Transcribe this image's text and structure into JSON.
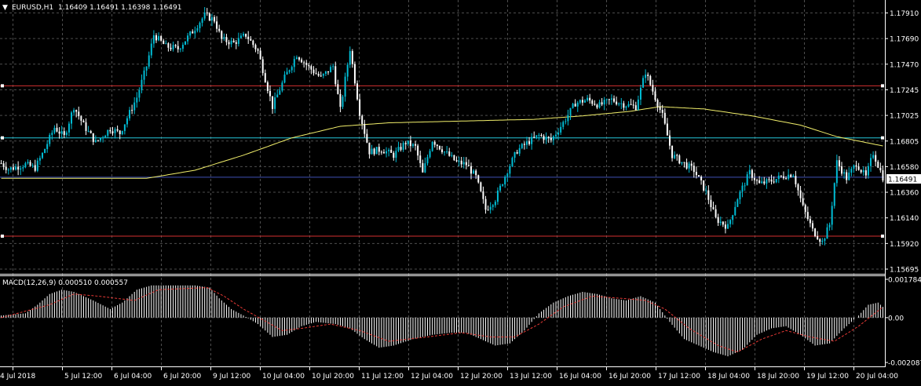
{
  "header": {
    "symbol_label": "EURUSD,H1",
    "ohlc": "1.16409 1.16491 1.16398 1.16491"
  },
  "indicator": {
    "label": "MACD(12,26,9) 0.000510 0.000557"
  },
  "colors": {
    "background": "#000000",
    "grid": "#4d4d4d",
    "text": "#ffffff",
    "candle": "#00bcd4",
    "ma_line": "#f2ef6b",
    "support_resistance": "#d32f2f",
    "cyan_hline": "#26c6da",
    "current_price_line": "#3f51b5",
    "macd_histogram": "#ffffff",
    "macd_signal": "#e53935"
  },
  "chart_data": [
    {
      "type": "candlestick",
      "title": "EURUSD,H1",
      "y_ticks": [
        "1.17910",
        "1.17690",
        "1.17470",
        "1.17245",
        "1.17025",
        "1.16805",
        "1.16580",
        "1.16360",
        "1.16140",
        "1.15920",
        "1.15695"
      ],
      "ylim": [
        1.15695,
        1.1801
      ],
      "x_ticks": [
        "4 Jul 2018",
        "5 Jul 12:00",
        "6 Jul 04:00",
        "6 Jul 20:00",
        "9 Jul 12:00",
        "10 Jul 04:00",
        "10 Jul 20:00",
        "11 Jul 12:00",
        "12 Jul 04:00",
        "12 Jul 20:00",
        "13 Jul 12:00",
        "16 Jul 04:00",
        "16 Jul 20:00",
        "17 Jul 12:00",
        "18 Jul 04:00",
        "18 Jul 20:00",
        "19 Jul 12:00",
        "20 Jul 04:00"
      ],
      "current_price": "1.16491",
      "horizontal_lines": [
        {
          "value": 1.1728,
          "color": "red"
        },
        {
          "value": 1.1683,
          "color": "cyan"
        },
        {
          "value": 1.1649,
          "color": "blue"
        },
        {
          "value": 1.1598,
          "color": "red"
        }
      ],
      "close_path": [
        [
          0,
          1.1661
        ],
        [
          3,
          1.1656
        ],
        [
          10,
          1.166
        ],
        [
          14,
          1.1657
        ],
        [
          17,
          1.1669
        ],
        [
          22,
          1.1692
        ],
        [
          26,
          1.1684
        ],
        [
          30,
          1.171
        ],
        [
          34,
          1.1694
        ],
        [
          39,
          1.1679
        ],
        [
          45,
          1.1691
        ],
        [
          49,
          1.1687
        ],
        [
          56,
          1.1718
        ],
        [
          60,
          1.1745
        ],
        [
          63,
          1.1772
        ],
        [
          68,
          1.1762
        ],
        [
          73,
          1.176
        ],
        [
          79,
          1.1775
        ],
        [
          84,
          1.1789
        ],
        [
          88,
          1.1785
        ],
        [
          91,
          1.1768
        ],
        [
          96,
          1.1765
        ],
        [
          101,
          1.1772
        ],
        [
          106,
          1.1758
        ],
        [
          112,
          1.171
        ],
        [
          117,
          1.1735
        ],
        [
          122,
          1.1755
        ],
        [
          127,
          1.1744
        ],
        [
          132,
          1.1735
        ],
        [
          137,
          1.1745
        ],
        [
          140,
          1.1707
        ],
        [
          144,
          1.176
        ],
        [
          148,
          1.1705
        ],
        [
          152,
          1.1671
        ],
        [
          157,
          1.1673
        ],
        [
          162,
          1.1668
        ],
        [
          167,
          1.1679
        ],
        [
          171,
          1.1675
        ],
        [
          174,
          1.1652
        ],
        [
          178,
          1.1681
        ],
        [
          183,
          1.1671
        ],
        [
          188,
          1.1662
        ],
        [
          192,
          1.166
        ],
        [
          196,
          1.1649
        ],
        [
          200,
          1.1621
        ],
        [
          204,
          1.163
        ],
        [
          209,
          1.1655
        ],
        [
          213,
          1.1672
        ],
        [
          218,
          1.168
        ],
        [
          222,
          1.1685
        ],
        [
          227,
          1.1681
        ],
        [
          232,
          1.1696
        ],
        [
          237,
          1.1713
        ],
        [
          242,
          1.1716
        ],
        [
          247,
          1.1711
        ],
        [
          252,
          1.1716
        ],
        [
          257,
          1.1712
        ],
        [
          262,
          1.171
        ],
        [
          266,
          1.174
        ],
        [
          270,
          1.1718
        ],
        [
          273,
          1.1702
        ],
        [
          277,
          1.1668
        ],
        [
          281,
          1.1662
        ],
        [
          286,
          1.1655
        ],
        [
          291,
          1.1636
        ],
        [
          295,
          1.1613
        ],
        [
          300,
          1.1606
        ],
        [
          304,
          1.1631
        ],
        [
          309,
          1.1653
        ],
        [
          313,
          1.1643
        ],
        [
          318,
          1.1646
        ],
        [
          323,
          1.165
        ],
        [
          327,
          1.1652
        ],
        [
          331,
          1.1623
        ],
        [
          335,
          1.1603
        ],
        [
          339,
          1.1593
        ],
        [
          342,
          1.1608
        ],
        [
          345,
          1.1662
        ],
        [
          349,
          1.1648
        ],
        [
          353,
          1.1661
        ],
        [
          357,
          1.1649
        ],
        [
          360,
          1.167
        ],
        [
          364,
          1.1649
        ]
      ],
      "ma_path": [
        [
          0,
          1.1648
        ],
        [
          40,
          1.1648
        ],
        [
          60,
          1.1648
        ],
        [
          80,
          1.1655
        ],
        [
          100,
          1.1668
        ],
        [
          120,
          1.1683
        ],
        [
          140,
          1.1693
        ],
        [
          160,
          1.1696
        ],
        [
          180,
          1.1697
        ],
        [
          200,
          1.1698
        ],
        [
          220,
          1.1699
        ],
        [
          240,
          1.1702
        ],
        [
          260,
          1.1706
        ],
        [
          272,
          1.171
        ],
        [
          290,
          1.1708
        ],
        [
          310,
          1.1702
        ],
        [
          330,
          1.1694
        ],
        [
          345,
          1.1684
        ],
        [
          364,
          1.1676
        ]
      ]
    },
    {
      "type": "bar",
      "title": "MACD(12,26,9)",
      "y_ticks": [
        "0.001784",
        "0.00",
        "-0.002087"
      ],
      "ylim": [
        -0.002087,
        0.001784
      ],
      "histogram_path": [
        [
          0,
          0.0001
        ],
        [
          10,
          0.0002
        ],
        [
          15,
          0.0006
        ],
        [
          20,
          0.0011
        ],
        [
          25,
          0.0013
        ],
        [
          30,
          0.0012
        ],
        [
          38,
          0.0008
        ],
        [
          45,
          0.0004
        ],
        [
          50,
          0.0007
        ],
        [
          56,
          0.0013
        ],
        [
          62,
          0.0015
        ],
        [
          70,
          0.0015
        ],
        [
          80,
          0.0015
        ],
        [
          86,
          0.0014
        ],
        [
          90,
          0.0009
        ],
        [
          95,
          0.0004
        ],
        [
          100,
          0.0001
        ],
        [
          106,
          -0.0003
        ],
        [
          112,
          -0.0009
        ],
        [
          118,
          -0.0008
        ],
        [
          124,
          -0.0004
        ],
        [
          130,
          -0.0002
        ],
        [
          138,
          -0.0003
        ],
        [
          144,
          -0.0005
        ],
        [
          150,
          -0.001
        ],
        [
          156,
          -0.0014
        ],
        [
          162,
          -0.0013
        ],
        [
          170,
          -0.001
        ],
        [
          178,
          -0.0008
        ],
        [
          186,
          -0.0007
        ],
        [
          192,
          -0.0007
        ],
        [
          198,
          -0.001
        ],
        [
          204,
          -0.0013
        ],
        [
          210,
          -0.0012
        ],
        [
          216,
          -0.0006
        ],
        [
          222,
          0.0002
        ],
        [
          228,
          0.0007
        ],
        [
          234,
          0.001
        ],
        [
          240,
          0.0012
        ],
        [
          246,
          0.0011
        ],
        [
          252,
          0.0009
        ],
        [
          258,
          0.0008
        ],
        [
          264,
          0.001
        ],
        [
          270,
          0.0007
        ],
        [
          276,
          -0.0002
        ],
        [
          282,
          -0.001
        ],
        [
          288,
          -0.0013
        ],
        [
          294,
          -0.0016
        ],
        [
          300,
          -0.0018
        ],
        [
          306,
          -0.0015
        ],
        [
          312,
          -0.0008
        ],
        [
          318,
          -0.0005
        ],
        [
          324,
          -0.0004
        ],
        [
          330,
          -0.0008
        ],
        [
          336,
          -0.0013
        ],
        [
          342,
          -0.0012
        ],
        [
          348,
          -0.0005
        ],
        [
          354,
          0.0001
        ],
        [
          358,
          0.0006
        ],
        [
          362,
          0.0007
        ],
        [
          364,
          0.0005
        ]
      ],
      "signal_path": [
        [
          0,
          0.0
        ],
        [
          20,
          0.0006
        ],
        [
          30,
          0.0011
        ],
        [
          40,
          0.001
        ],
        [
          55,
          0.0008
        ],
        [
          65,
          0.0013
        ],
        [
          85,
          0.0014
        ],
        [
          92,
          0.001
        ],
        [
          100,
          0.0004
        ],
        [
          108,
          -0.0001
        ],
        [
          116,
          -0.0006
        ],
        [
          124,
          -0.0005
        ],
        [
          136,
          -0.0003
        ],
        [
          148,
          -0.0006
        ],
        [
          160,
          -0.0011
        ],
        [
          176,
          -0.0009
        ],
        [
          190,
          -0.0007
        ],
        [
          202,
          -0.0009
        ],
        [
          212,
          -0.0009
        ],
        [
          222,
          -0.0003
        ],
        [
          232,
          0.0005
        ],
        [
          244,
          0.001
        ],
        [
          256,
          0.0009
        ],
        [
          266,
          0.0008
        ],
        [
          274,
          0.0004
        ],
        [
          284,
          -0.0005
        ],
        [
          296,
          -0.0013
        ],
        [
          304,
          -0.0016
        ],
        [
          314,
          -0.001
        ],
        [
          324,
          -0.0006
        ],
        [
          334,
          -0.0009
        ],
        [
          344,
          -0.0011
        ],
        [
          354,
          -0.0004
        ],
        [
          364,
          0.0005
        ]
      ]
    }
  ]
}
